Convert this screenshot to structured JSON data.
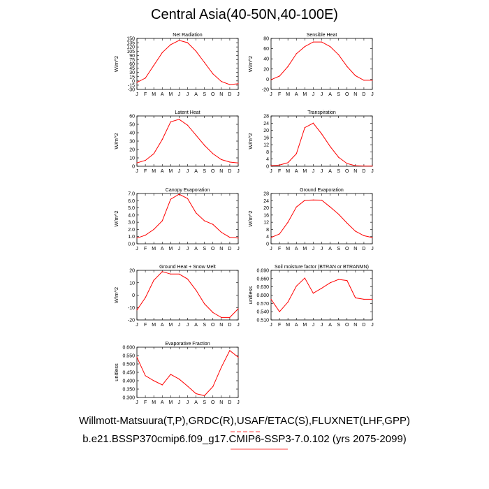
{
  "figure": {
    "title": "Central Asia(40-50N,40-100E)",
    "footer_line1": "Willmott-Matsuura(T,P),GRDC(R),USAF/ETAC(S),FLUXNET(LHF,GPP)",
    "footer_line2": "b.e21.BSSP370cmip6.f09_g17.CMIP6-SSP3-7.0.102 (yrs 2075-2099)",
    "line_color": "#ff0000",
    "mark_color": "#ff0000"
  },
  "chart_data": [
    {
      "type": "line",
      "title": "Net Radiation",
      "ylabel": "W/m^2",
      "categories": [
        "J",
        "F",
        "M",
        "A",
        "M",
        "J",
        "J",
        "A",
        "S",
        "O",
        "N",
        "D",
        "J"
      ],
      "values": [
        -5,
        10,
        55,
        100,
        128,
        143,
        135,
        105,
        65,
        25,
        -2,
        -13,
        -10
      ],
      "ylim": [
        -30,
        150
      ],
      "yticks": [
        -30,
        -15,
        0,
        15,
        30,
        45,
        60,
        75,
        90,
        105,
        120,
        135,
        150
      ]
    },
    {
      "type": "line",
      "title": "Sensible Heat",
      "ylabel": "W/m^2",
      "categories": [
        "J",
        "F",
        "M",
        "A",
        "M",
        "J",
        "J",
        "A",
        "S",
        "O",
        "N",
        "D",
        "J"
      ],
      "values": [
        -1,
        6,
        25,
        50,
        64,
        73,
        73,
        64,
        48,
        25,
        7,
        -2,
        -2
      ],
      "ylim": [
        -20,
        80
      ],
      "yticks": [
        -20,
        0,
        20,
        40,
        60,
        80
      ]
    },
    {
      "type": "line",
      "title": "Latent Heat",
      "ylabel": "W/m^2",
      "categories": [
        "J",
        "F",
        "M",
        "A",
        "M",
        "J",
        "J",
        "A",
        "S",
        "O",
        "N",
        "D",
        "J"
      ],
      "values": [
        4,
        7,
        15,
        32,
        53,
        56,
        49,
        37,
        25,
        15,
        8,
        5,
        4
      ],
      "ylim": [
        0,
        60
      ],
      "yticks": [
        0,
        10,
        20,
        30,
        40,
        50,
        60
      ]
    },
    {
      "type": "line",
      "title": "Transpiration",
      "ylabel": "W/m^2",
      "categories": [
        "J",
        "F",
        "M",
        "A",
        "M",
        "J",
        "J",
        "A",
        "S",
        "O",
        "N",
        "D",
        "J"
      ],
      "values": [
        0.3,
        0.7,
        2,
        7,
        21.5,
        24,
        18,
        11,
        5,
        1.5,
        0.3,
        0.1,
        0.1
      ],
      "ylim": [
        0,
        28
      ],
      "yticks": [
        0,
        4,
        8,
        12,
        16,
        20,
        24,
        28
      ]
    },
    {
      "type": "line",
      "title": "Canopy Evaporation",
      "ylabel": "W/m^2",
      "categories": [
        "J",
        "F",
        "M",
        "A",
        "M",
        "J",
        "J",
        "A",
        "S",
        "O",
        "N",
        "D",
        "J"
      ],
      "values": [
        0.8,
        1.2,
        2.0,
        3.2,
        6.2,
        6.9,
        6.3,
        4.3,
        3.2,
        2.7,
        1.6,
        0.9,
        0.8
      ],
      "ylim": [
        0,
        7
      ],
      "yticks": [
        0,
        1,
        2,
        3,
        4,
        5,
        6,
        7
      ],
      "yticklabels": [
        "0.0",
        "1.0",
        "2.0",
        "3.0",
        "4.0",
        "5.0",
        "6.0",
        "7.0"
      ]
    },
    {
      "type": "line",
      "title": "Ground Evaporation",
      "ylabel": "W/m^2",
      "categories": [
        "J",
        "F",
        "M",
        "A",
        "M",
        "J",
        "J",
        "A",
        "S",
        "O",
        "N",
        "D",
        "J"
      ],
      "values": [
        3.5,
        5.5,
        12,
        20.5,
        24.2,
        24.4,
        24.3,
        20.5,
        16.5,
        11.5,
        7,
        4.5,
        3.5
      ],
      "ylim": [
        0,
        28
      ],
      "yticks": [
        0,
        4,
        8,
        12,
        16,
        20,
        24,
        28
      ]
    },
    {
      "type": "line",
      "title": "Ground Heat + Snow Melt",
      "ylabel": "W/m^2",
      "categories": [
        "J",
        "F",
        "M",
        "A",
        "M",
        "J",
        "J",
        "A",
        "S",
        "O",
        "N",
        "D",
        "J"
      ],
      "values": [
        -12,
        -2,
        12,
        19,
        17,
        17,
        13,
        4,
        -7,
        -14,
        -18,
        -18,
        -11
      ],
      "ylim": [
        -20,
        20
      ],
      "yticks": [
        -20,
        -10,
        0,
        10,
        20
      ]
    },
    {
      "type": "line",
      "title": "Soil moisture factor (BTRAN or BTRANMN)",
      "ylabel": "unitless",
      "categories": [
        "J",
        "F",
        "M",
        "A",
        "M",
        "J",
        "J",
        "A",
        "S",
        "O",
        "N",
        "D",
        "J"
      ],
      "values": [
        0.585,
        0.54,
        0.575,
        0.633,
        0.662,
        0.607,
        0.625,
        0.645,
        0.657,
        0.653,
        0.59,
        0.585,
        0.585
      ],
      "ylim": [
        0.51,
        0.69
      ],
      "yticks": [
        0.51,
        0.54,
        0.57,
        0.6,
        0.63,
        0.66,
        0.69
      ],
      "yticklabels": [
        "0.510",
        "0.540",
        "0.570",
        "0.600",
        "0.630",
        "0.660",
        "0.690"
      ]
    },
    {
      "type": "line",
      "title": "Evaporative Fraction",
      "ylabel": "unitless",
      "categories": [
        "J",
        "F",
        "M",
        "A",
        "M",
        "J",
        "J",
        "A",
        "S",
        "O",
        "N",
        "D",
        "J"
      ],
      "values": [
        0.54,
        0.43,
        0.4,
        0.375,
        0.438,
        0.41,
        0.368,
        0.323,
        0.311,
        0.365,
        0.48,
        0.58,
        0.54
      ],
      "ylim": [
        0.3,
        0.6
      ],
      "yticks": [
        0.3,
        0.35,
        0.4,
        0.45,
        0.5,
        0.55,
        0.6
      ],
      "yticklabels": [
        "0.300",
        "0.350",
        "0.400",
        "0.450",
        "0.500",
        "0.550",
        "0.600"
      ]
    }
  ]
}
